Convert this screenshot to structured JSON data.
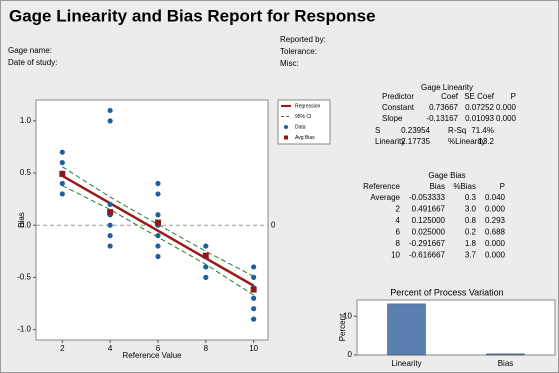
{
  "header": {
    "title": "Gage Linearity and Bias Report for Response",
    "fields": [
      "Gage name:",
      "Date of study:",
      "Reported by:",
      "Tolerance:",
      "Misc:"
    ]
  },
  "gage_linearity": {
    "title": "Gage Linearity",
    "columns": [
      "Predictor",
      "Coef",
      "SE Coef",
      "P"
    ],
    "rows": [
      [
        "Constant",
        "0.73667",
        "0.07252",
        "0.000"
      ],
      [
        "Slope",
        "-0.13167",
        "0.01093",
        "0.000"
      ]
    ],
    "summary": [
      [
        "S",
        "0.23954",
        "R-Sq",
        "71.4%"
      ],
      [
        "Linearity",
        "2.17735",
        "%Linearity",
        "13.2"
      ]
    ]
  },
  "gage_bias": {
    "title": "Gage Bias",
    "columns": [
      "Reference",
      "Bias",
      "%Bias",
      "P"
    ],
    "rows": [
      [
        "Average",
        "-0.053333",
        "0.3",
        "0.040"
      ],
      [
        "2",
        "0.491667",
        "3.0",
        "0.000"
      ],
      [
        "4",
        "0.125000",
        "0.8",
        "0.293"
      ],
      [
        "6",
        "0.025000",
        "0.2",
        "0.688"
      ],
      [
        "8",
        "-0.291667",
        "1.8",
        "0.000"
      ],
      [
        "10",
        "-0.616667",
        "3.7",
        "0.000"
      ]
    ]
  },
  "chart_data": [
    {
      "type": "scatter",
      "xlabel": "Reference Value",
      "ylabel": "Bias",
      "xlim": [
        0.9,
        10.6
      ],
      "ylim": [
        -1.1,
        1.2
      ],
      "xticks": [
        2,
        4,
        6,
        8,
        10
      ],
      "yticks": [
        {
          "value": -1,
          "label": "-1.0"
        },
        {
          "value": -0.5,
          "label": "-0.5"
        },
        {
          "value": 0,
          "label": "0.0"
        },
        {
          "value": 0.5,
          "label": "0.5"
        },
        {
          "value": 1,
          "label": "1.0"
        }
      ],
      "reference_line": 0,
      "series": [
        {
          "name": "Regression",
          "color": "#9b1b1b",
          "x": [
            2,
            10
          ],
          "values": [
            0.47333,
            -0.58003
          ]
        },
        {
          "name": "95% CI",
          "color": "#2a7a2a",
          "x": [
            2,
            4,
            6,
            8,
            10
          ],
          "values": [
            0.56,
            0.27,
            0.007,
            -0.25,
            -0.49
          ],
          "lower": [
            0.38,
            0.15,
            -0.115,
            -0.375,
            -0.67
          ]
        },
        {
          "name": "Data",
          "color": "#1f5fa0",
          "x": [
            2,
            2,
            2,
            2,
            2,
            4,
            4,
            4,
            4,
            4,
            4,
            4,
            6,
            6,
            6,
            6,
            6,
            6,
            6,
            8,
            8,
            8,
            8,
            10,
            10,
            10,
            10,
            10,
            10
          ],
          "values": [
            0.7,
            0.6,
            0.5,
            0.4,
            0.3,
            1.1,
            1.0,
            0.2,
            0.1,
            0.0,
            -0.1,
            -0.2,
            0.4,
            0.3,
            0.1,
            0.0,
            -0.1,
            -0.2,
            -0.3,
            -0.2,
            -0.3,
            -0.4,
            -0.5,
            -0.4,
            -0.5,
            -0.6,
            -0.7,
            -0.8,
            -0.9
          ]
        },
        {
          "name": "Avg Bias",
          "color": "#8b1a1a",
          "x": [
            2,
            4,
            6,
            8,
            10
          ],
          "values": [
            0.491667,
            0.125,
            0.025,
            -0.291667,
            -0.616667
          ]
        }
      ]
    },
    {
      "type": "bar",
      "title": "Percent of Process Variation",
      "ylabel": "Percent",
      "categories": [
        "Linearity",
        "Bias"
      ],
      "values": [
        13.2,
        0.3
      ],
      "color": "#5b7faf",
      "ylim": [
        0,
        14.2
      ],
      "yticks": [
        0,
        10
      ]
    }
  ]
}
